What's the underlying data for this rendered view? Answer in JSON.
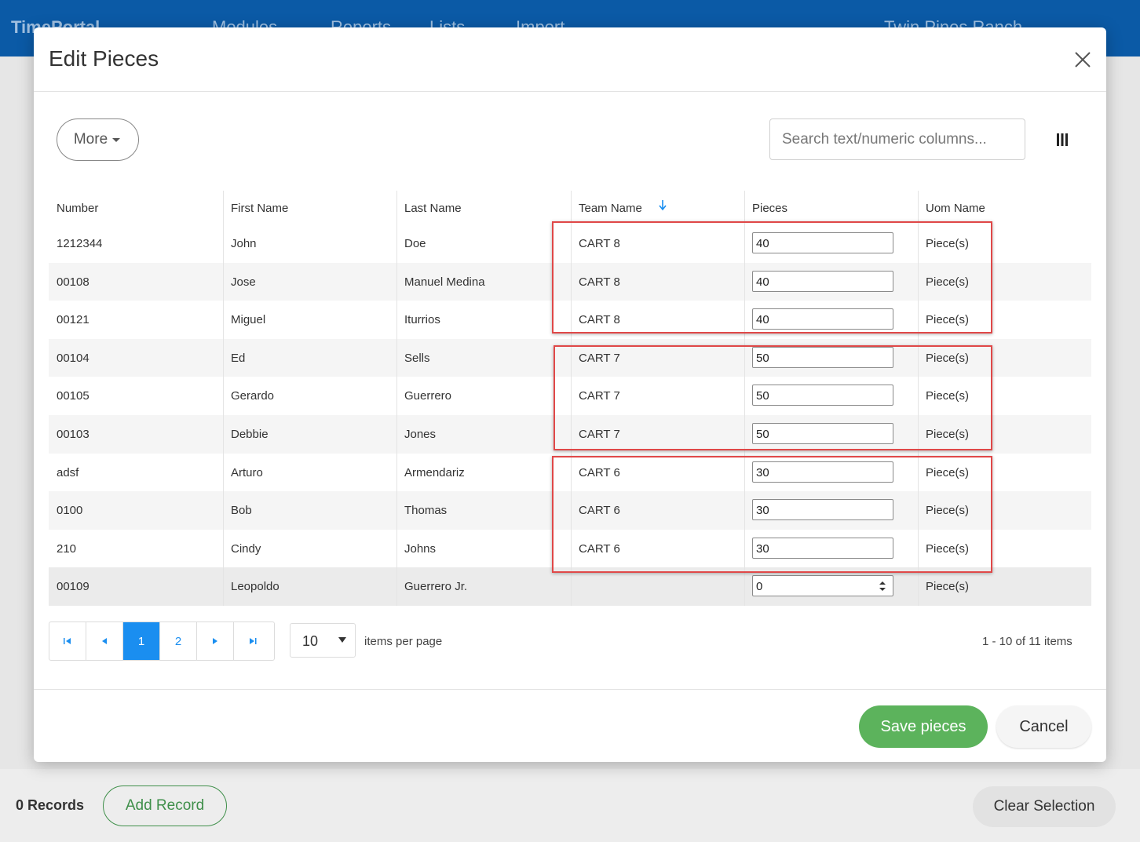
{
  "background": {
    "brand": "TimePortal",
    "nav": [
      "Modules",
      "Reports",
      "Lists",
      "Import"
    ],
    "org": "Twin Pines Ranch",
    "records": "0 Records",
    "add_record": "Add Record",
    "clear_selection": "Clear Selection"
  },
  "modal": {
    "title": "Edit Pieces",
    "more": "More",
    "search_placeholder": "Search text/numeric columns...",
    "columns": [
      "Number",
      "First Name",
      "Last Name",
      "Team Name",
      "Pieces",
      "Uom Name"
    ],
    "rows": [
      [
        "1212344",
        "John",
        "Doe",
        "CART 8",
        "40",
        "Piece(s)"
      ],
      [
        "00108",
        "Jose",
        "Manuel Medina",
        "CART 8",
        "40",
        "Piece(s)"
      ],
      [
        "00121",
        "Miguel",
        "Iturrios",
        "CART 8",
        "40",
        "Piece(s)"
      ],
      [
        "00104",
        "Ed",
        "Sells",
        "CART 7",
        "50",
        "Piece(s)"
      ],
      [
        "00105",
        "Gerardo",
        "Guerrero",
        "CART 7",
        "50",
        "Piece(s)"
      ],
      [
        "00103",
        "Debbie",
        "Jones",
        "CART 7",
        "50",
        "Piece(s)"
      ],
      [
        "adsf",
        "Arturo",
        "Armendariz",
        "CART 6",
        "30",
        "Piece(s)"
      ],
      [
        "0100",
        "Bob",
        "Thomas",
        "CART 6",
        "30",
        "Piece(s)"
      ],
      [
        "210",
        "Cindy",
        "Johns",
        "CART 6",
        "30",
        "Piece(s)"
      ],
      [
        "00109",
        "Leopoldo",
        "Guerrero Jr.",
        null,
        "0",
        "Piece(s)"
      ]
    ],
    "pagination": {
      "pages": [
        "1",
        "2"
      ],
      "page_size": "10",
      "page_size_label": "items per page",
      "summary": "1 - 10 of 11 items"
    },
    "save": "Save pieces",
    "cancel": "Cancel"
  }
}
